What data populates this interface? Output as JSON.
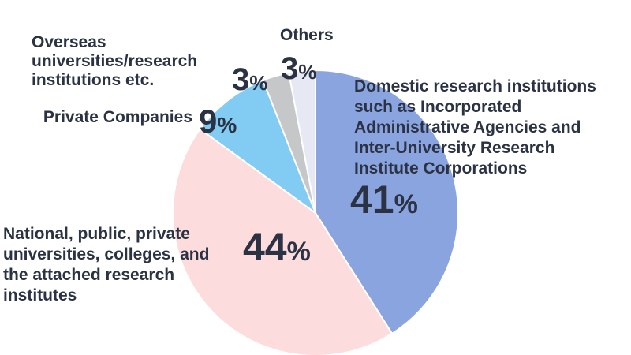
{
  "chart_data": {
    "type": "pie",
    "start_angle_deg": 0,
    "direction": "clockwise",
    "slices": [
      {
        "label_lines": [
          "Domestic research institutions",
          "such as Incorporated",
          "Administrative Agencies and",
          "Inter-University Research",
          "Institute Corporations"
        ],
        "value": 41,
        "value_text": "41",
        "color": "#8aa4e0"
      },
      {
        "label_lines": [
          "National, public, private",
          "universities, colleges, and",
          "the attached research",
          "institutes"
        ],
        "value": 44,
        "value_text": "44",
        "color": "#fcdcdd"
      },
      {
        "label_lines": [
          "Private Companies"
        ],
        "value": 9,
        "value_text": "9",
        "color": "#82cbf3"
      },
      {
        "label_lines": [
          "Overseas",
          "universities/research",
          "institutions etc."
        ],
        "value": 3,
        "value_text": "3",
        "color": "#c6c7c9"
      },
      {
        "label_lines": [
          "Others"
        ],
        "value": 3,
        "value_text": "3",
        "color": "#e6e9f3"
      }
    ],
    "percent_symbol": "%",
    "legend": "none"
  }
}
